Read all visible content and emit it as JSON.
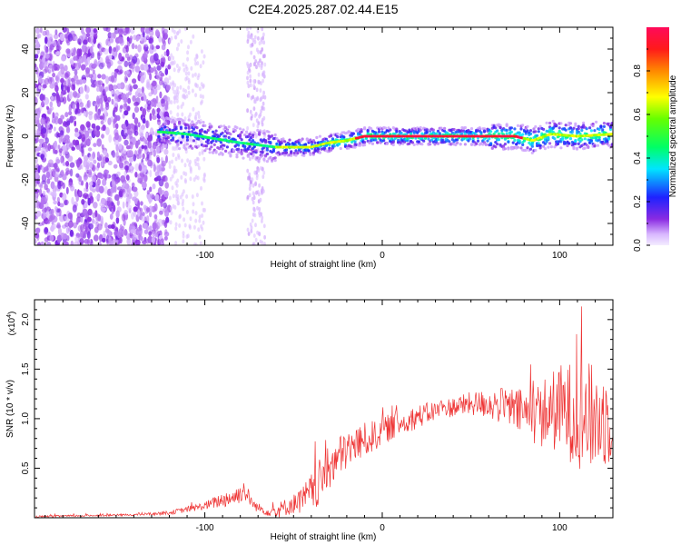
{
  "chart_data": [
    {
      "type": "heatmap",
      "title": "C2E4.2025.287.02.44.E15",
      "xlabel": "Height of straight line (km)",
      "ylabel": "Frequency (Hz)",
      "xlim": [
        -196,
        130
      ],
      "ylim": [
        -50,
        50
      ],
      "xticks": [
        -100,
        0,
        100
      ],
      "xtick_labels": [
        "-100",
        "0",
        "100"
      ],
      "yticks": [
        -40,
        -20,
        0,
        20,
        40
      ],
      "ytick_labels": [
        "-40",
        "-20",
        "0",
        "20",
        "40"
      ],
      "ridge": {
        "name": "dominant frequency track",
        "x": [
          -125,
          -110,
          -95,
          -80,
          -70,
          -60,
          -50,
          -40,
          -30,
          -20,
          -10,
          0,
          20,
          40,
          60,
          75,
          85,
          95,
          110,
          130
        ],
        "y": [
          2,
          1,
          -1,
          -3,
          -4,
          -5,
          -5,
          -5,
          -3,
          -2,
          0,
          0,
          0,
          0,
          0,
          0,
          -2,
          1,
          0,
          1
        ]
      },
      "colorbar": {
        "label": "Normalized spectral amplitude",
        "range": [
          0,
          1
        ],
        "ticks": [
          0.0,
          0.2,
          0.4,
          0.6,
          0.8
        ],
        "tick_labels": [
          "0.0",
          "0.2",
          "0.4",
          "0.6",
          "0.8"
        ]
      }
    },
    {
      "type": "line",
      "title": "",
      "xlabel": "Height of straight line (km)",
      "ylabel": "SNR (10 * v/v)",
      "scale_note": "(x10",
      "scale_exponent": "4",
      "scale_close": ")",
      "xlim": [
        -196,
        130
      ],
      "ylim": [
        0,
        2.2
      ],
      "xticks": [
        -100,
        0,
        100
      ],
      "xtick_labels": [
        "-100",
        "0",
        "100"
      ],
      "yticks": [
        0.5,
        1.0,
        1.5,
        2.0
      ],
      "ytick_labels": [
        "0.5",
        "1.0",
        "1.5",
        "2.0"
      ],
      "series": [
        {
          "name": "SNR",
          "color": "#ee3333",
          "x": [
            -196,
            -170,
            -140,
            -120,
            -100,
            -90,
            -82,
            -78,
            -72,
            -65,
            -58,
            -50,
            -45,
            -40,
            -35,
            -30,
            -25,
            -20,
            -15,
            -10,
            -5,
            0,
            10,
            20,
            30,
            40,
            50,
            60,
            70,
            80,
            90,
            100,
            110,
            120,
            130
          ],
          "mean": [
            0.01,
            0.02,
            0.03,
            0.05,
            0.12,
            0.18,
            0.22,
            0.28,
            0.12,
            0.06,
            0.08,
            0.14,
            0.18,
            0.25,
            0.35,
            0.5,
            0.6,
            0.68,
            0.74,
            0.78,
            0.82,
            0.88,
            0.95,
            1.02,
            1.08,
            1.12,
            1.15,
            1.15,
            1.12,
            1.05,
            1.05,
            1.1,
            1.05,
            1.0,
            1.0
          ],
          "spread": [
            0.01,
            0.01,
            0.01,
            0.02,
            0.04,
            0.08,
            0.1,
            0.1,
            0.05,
            0.04,
            0.08,
            0.1,
            0.14,
            0.2,
            0.25,
            0.22,
            0.22,
            0.2,
            0.18,
            0.18,
            0.16,
            0.15,
            0.12,
            0.12,
            0.1,
            0.1,
            0.12,
            0.15,
            0.2,
            0.25,
            0.35,
            0.45,
            0.55,
            0.55,
            0.45
          ]
        }
      ]
    }
  ],
  "colors": {
    "line": "#ee3333",
    "frame": "#000000",
    "grid_bg": "#ffffff"
  }
}
